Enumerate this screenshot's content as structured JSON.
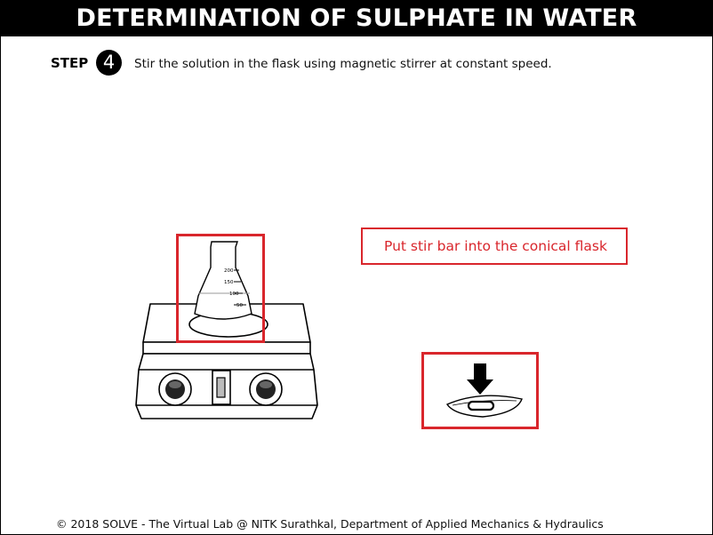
{
  "title": "DETERMINATION OF SULPHATE IN WATER",
  "step": {
    "label": "STEP",
    "number": "4",
    "instruction": "Stir the solution in the flask using magnetic stirrer at constant speed."
  },
  "hint": "Put stir bar into the conical flask",
  "flask": {
    "graduations": [
      "200",
      "150",
      "100",
      "50"
    ]
  },
  "colors": {
    "highlight": "#d9262c",
    "title_bg": "#000000"
  },
  "footer": "© 2018 SOLVE - The Virtual Lab @ NITK Surathkal, Department of Applied Mechanics & Hydraulics"
}
